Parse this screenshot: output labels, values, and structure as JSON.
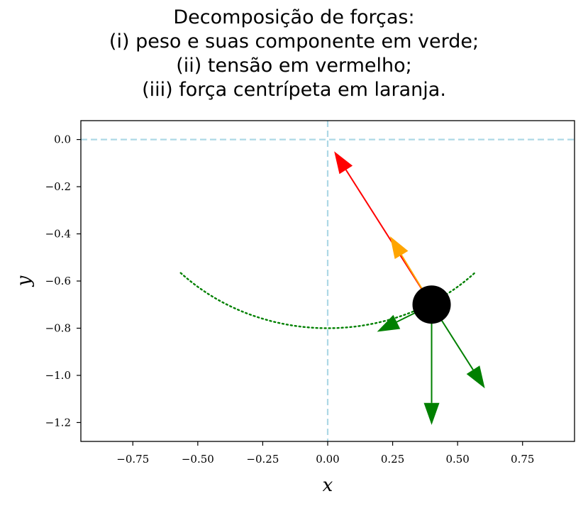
{
  "chart_data": {
    "type": "diagram",
    "title_lines": [
      "Decomposição de forças:",
      "(i) peso e suas componente em verde;",
      "(ii) tensão em vermelho;",
      "(iii) força centrípeta em laranja."
    ],
    "xlabel": "x",
    "ylabel": "y",
    "xlim": [
      -0.95,
      0.95
    ],
    "ylim": [
      -1.28,
      0.08
    ],
    "xticks": [
      -0.75,
      -0.5,
      -0.25,
      0.0,
      0.25,
      0.5,
      0.75
    ],
    "xtick_labels": [
      "−0.75",
      "−0.50",
      "−0.25",
      "0.00",
      "0.25",
      "0.50",
      "0.75"
    ],
    "yticks": [
      0.0,
      -0.2,
      -0.4,
      -0.6,
      -0.8,
      -1.0,
      -1.2
    ],
    "ytick_labels": [
      "0.0",
      "−0.2",
      "−0.4",
      "−0.6",
      "−0.8",
      "−1.0",
      "−1.2"
    ],
    "reference_lines": {
      "x": 0.0,
      "y": 0.0,
      "style": "dashed",
      "color": "#add8e6"
    },
    "path": {
      "radius": 0.8,
      "theta_range_deg": [
        -45,
        45
      ],
      "style": "dotted",
      "color": "#008000"
    },
    "pendulum_bob": {
      "x": 0.4,
      "y": -0.7,
      "color": "#000000"
    },
    "vectors": [
      {
        "name": "tensão",
        "from": [
          0.4,
          -0.7
        ],
        "to": [
          0.025,
          -0.05
        ],
        "color": "#ff0000"
      },
      {
        "name": "força centrípeta",
        "from": [
          0.4,
          -0.7
        ],
        "to": [
          0.24,
          -0.41
        ],
        "color": "#ffa500"
      },
      {
        "name": "peso",
        "from": [
          0.4,
          -0.7
        ],
        "to": [
          0.4,
          -1.21
        ],
        "color": "#008000"
      },
      {
        "name": "componente radial",
        "from": [
          0.4,
          -0.7
        ],
        "to": [
          0.605,
          -1.055
        ],
        "color": "#008000"
      },
      {
        "name": "componente tangencial",
        "from": [
          0.4,
          -0.7
        ],
        "to": [
          0.19,
          -0.815
        ],
        "color": "#008000"
      }
    ],
    "colors": {
      "tension": "#ff0000",
      "centripetal": "#ffa500",
      "weight": "#008000",
      "reference": "#add8e6"
    }
  }
}
